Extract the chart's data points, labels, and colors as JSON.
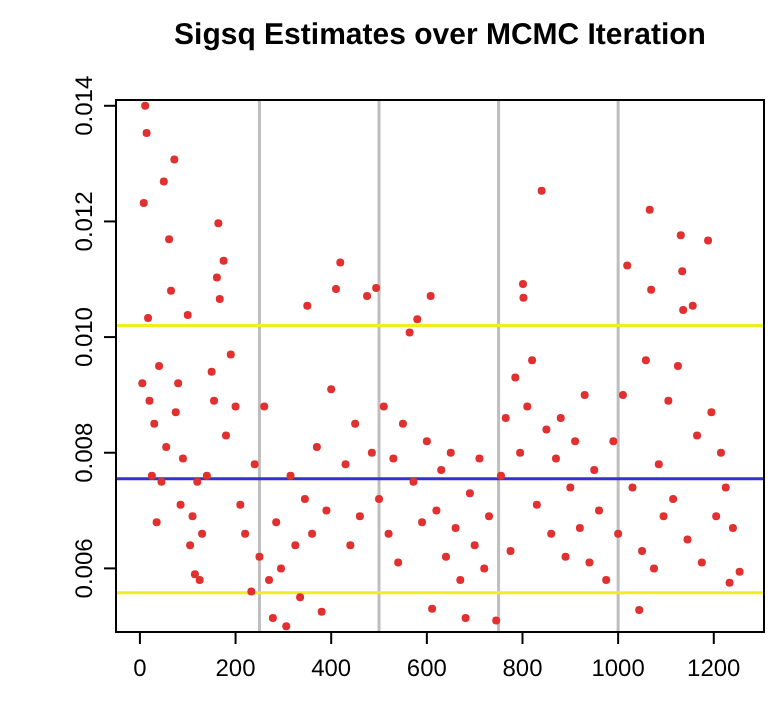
{
  "chart_data": {
    "type": "scatter",
    "title": "Sigsq Estimates over MCMC Iteration",
    "xlim": [
      -50,
      1305
    ],
    "ylim": [
      0.0049,
      0.0141
    ],
    "xticks": [
      0,
      200,
      400,
      600,
      800,
      1000,
      1200
    ],
    "yticks": [
      {
        "value": 0.006,
        "label": "0.006"
      },
      {
        "value": 0.008,
        "label": "0.008"
      },
      {
        "value": 0.01,
        "label": "0.010"
      },
      {
        "value": 0.012,
        "label": "0.012"
      },
      {
        "value": 0.014,
        "label": "0.014"
      }
    ],
    "marker": "circle",
    "grid": false,
    "series": [
      {
        "color": "#e03030",
        "x": [
          5,
          8,
          11,
          14,
          17,
          20,
          25,
          30,
          35,
          40,
          45,
          50,
          55,
          61,
          65,
          72,
          75,
          80,
          85,
          90,
          100,
          105,
          110,
          115,
          120,
          125,
          130,
          140,
          150,
          155,
          161,
          164,
          167,
          175,
          180,
          190,
          200,
          210,
          220,
          233,
          240,
          250,
          260,
          270,
          278,
          285,
          295,
          306,
          315,
          325,
          335,
          345,
          350,
          360,
          370,
          380,
          390,
          400,
          410,
          419,
          430,
          440,
          450,
          460,
          475,
          485,
          494,
          500,
          510,
          520,
          530,
          540,
          550,
          564,
          572,
          580,
          590,
          600,
          608,
          611,
          620,
          630,
          640,
          650,
          660,
          670,
          681,
          690,
          700,
          710,
          720,
          730,
          745,
          755,
          765,
          775,
          785,
          795,
          801,
          802,
          810,
          820,
          830,
          840,
          850,
          860,
          870,
          880,
          890,
          900,
          910,
          920,
          930,
          940,
          950,
          960,
          975,
          990,
          1000,
          1010,
          1019,
          1030,
          1044,
          1050,
          1058,
          1066,
          1069,
          1075,
          1085,
          1095,
          1105,
          1115,
          1125,
          1131,
          1134,
          1136,
          1145,
          1156,
          1165,
          1175,
          1188,
          1195,
          1205,
          1215,
          1225,
          1233,
          1240,
          1254
        ],
        "values": [
          0.0092,
          0.01232,
          0.014,
          0.01353,
          0.01033,
          0.0089,
          0.0076,
          0.0085,
          0.0068,
          0.0095,
          0.0075,
          0.01269,
          0.0081,
          0.01169,
          0.0108,
          0.01307,
          0.0087,
          0.0092,
          0.0071,
          0.0079,
          0.01038,
          0.0064,
          0.0069,
          0.0059,
          0.0075,
          0.0058,
          0.0066,
          0.0076,
          0.0094,
          0.0089,
          0.01103,
          0.01197,
          0.01066,
          0.01132,
          0.0083,
          0.0097,
          0.0088,
          0.0071,
          0.0066,
          0.0056,
          0.0078,
          0.0062,
          0.0088,
          0.0058,
          0.00514,
          0.0068,
          0.006,
          0.005,
          0.0076,
          0.0064,
          0.0055,
          0.0072,
          0.01054,
          0.0066,
          0.0081,
          0.00525,
          0.007,
          0.0091,
          0.01083,
          0.01129,
          0.0078,
          0.0064,
          0.0085,
          0.0069,
          0.01071,
          0.008,
          0.01085,
          0.0072,
          0.0088,
          0.0066,
          0.0079,
          0.0061,
          0.0085,
          0.01008,
          0.0075,
          0.01031,
          0.0068,
          0.0082,
          0.01071,
          0.0053,
          0.007,
          0.0077,
          0.0062,
          0.008,
          0.0067,
          0.0058,
          0.00514,
          0.0073,
          0.0064,
          0.0079,
          0.006,
          0.0069,
          0.0051,
          0.0076,
          0.0086,
          0.0063,
          0.0093,
          0.008,
          0.01092,
          0.01068,
          0.0088,
          0.0096,
          0.0071,
          0.01253,
          0.0084,
          0.0066,
          0.0079,
          0.0086,
          0.0062,
          0.0074,
          0.0082,
          0.0067,
          0.009,
          0.0061,
          0.0077,
          0.007,
          0.0058,
          0.0082,
          0.0066,
          0.009,
          0.01124,
          0.0074,
          0.00528,
          0.0063,
          0.0096,
          0.0122,
          0.01082,
          0.006,
          0.0078,
          0.0069,
          0.0089,
          0.0072,
          0.0095,
          0.01176,
          0.01114,
          0.01047,
          0.0065,
          0.01054,
          0.0083,
          0.0061,
          0.01167,
          0.0087,
          0.0069,
          0.008,
          0.0074,
          0.00575,
          0.0067,
          0.00594
        ]
      }
    ],
    "ref_lines": [
      {
        "axis": "x",
        "value": 250,
        "color": "#bebebe"
      },
      {
        "axis": "x",
        "value": 500,
        "color": "#bebebe"
      },
      {
        "axis": "x",
        "value": 750,
        "color": "#bebebe"
      },
      {
        "axis": "x",
        "value": 1000,
        "color": "#bebebe"
      },
      {
        "axis": "y",
        "value": 0.00755,
        "color": "#3333cc"
      },
      {
        "axis": "y",
        "value": 0.0102,
        "color": "#eeee22"
      },
      {
        "axis": "y",
        "value": 0.00558,
        "color": "#eeee22"
      }
    ]
  }
}
